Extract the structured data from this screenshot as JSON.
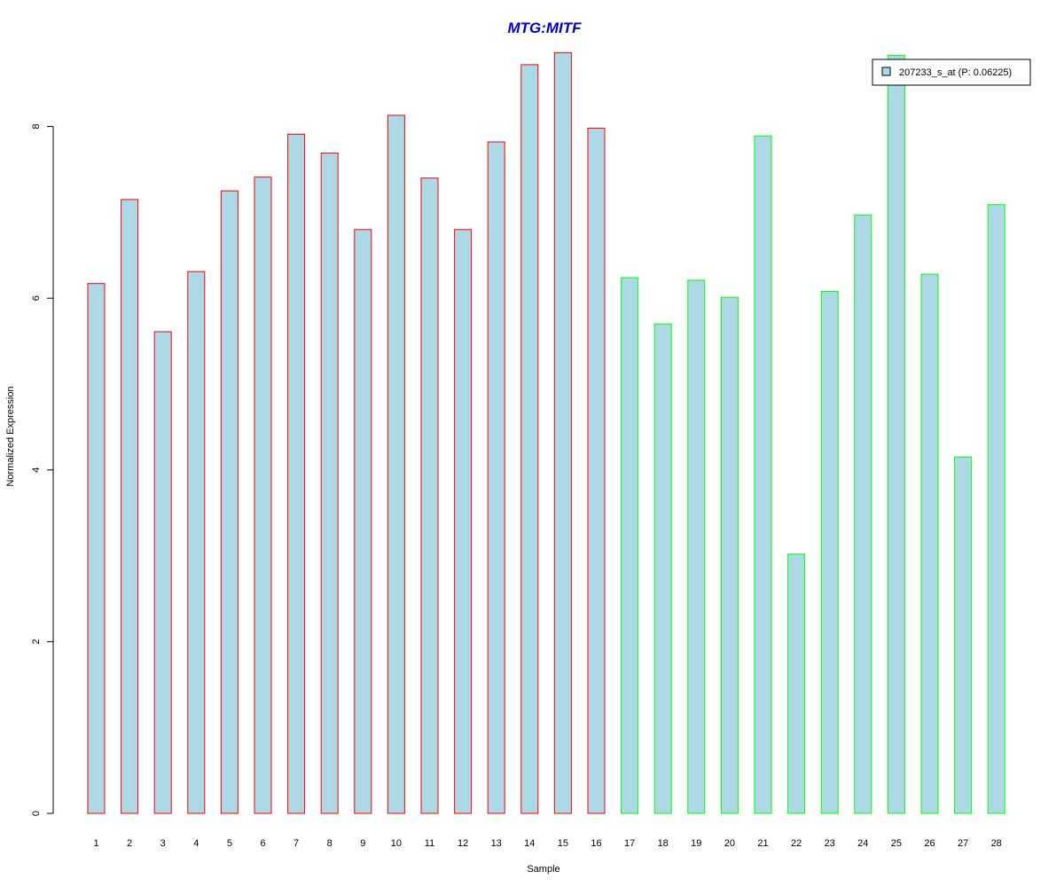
{
  "chart_data": {
    "type": "bar",
    "title": "MTG:MITF",
    "xlabel": "Sample",
    "ylabel": "Normalized Expression",
    "categories": [
      "1",
      "2",
      "3",
      "4",
      "5",
      "6",
      "7",
      "8",
      "9",
      "10",
      "11",
      "12",
      "13",
      "14",
      "15",
      "16",
      "17",
      "18",
      "19",
      "20",
      "21",
      "22",
      "23",
      "24",
      "25",
      "26",
      "27",
      "28"
    ],
    "series": [
      {
        "name": "207233_s_at (P: 0.06225)",
        "values": [
          6.17,
          7.15,
          5.61,
          6.31,
          7.25,
          7.41,
          7.91,
          7.69,
          6.8,
          8.13,
          7.4,
          6.8,
          7.82,
          8.72,
          8.86,
          7.98,
          6.24,
          5.7,
          6.21,
          6.01,
          7.89,
          3.02,
          6.08,
          6.97,
          8.83,
          6.28,
          4.15,
          7.09
        ]
      }
    ],
    "groups": [
      {
        "from": 1,
        "to": 16,
        "border_color": "#ff0000"
      },
      {
        "from": 17,
        "to": 28,
        "border_color": "#00ff00"
      }
    ],
    "ylim": [
      0,
      9
    ],
    "yticks": [
      0,
      2,
      4,
      6,
      8
    ],
    "grid": false,
    "legend_position": "top-right",
    "colors": {
      "bar_fill": "#add8e6",
      "title": "#0000cd",
      "axis": "#000000"
    }
  }
}
